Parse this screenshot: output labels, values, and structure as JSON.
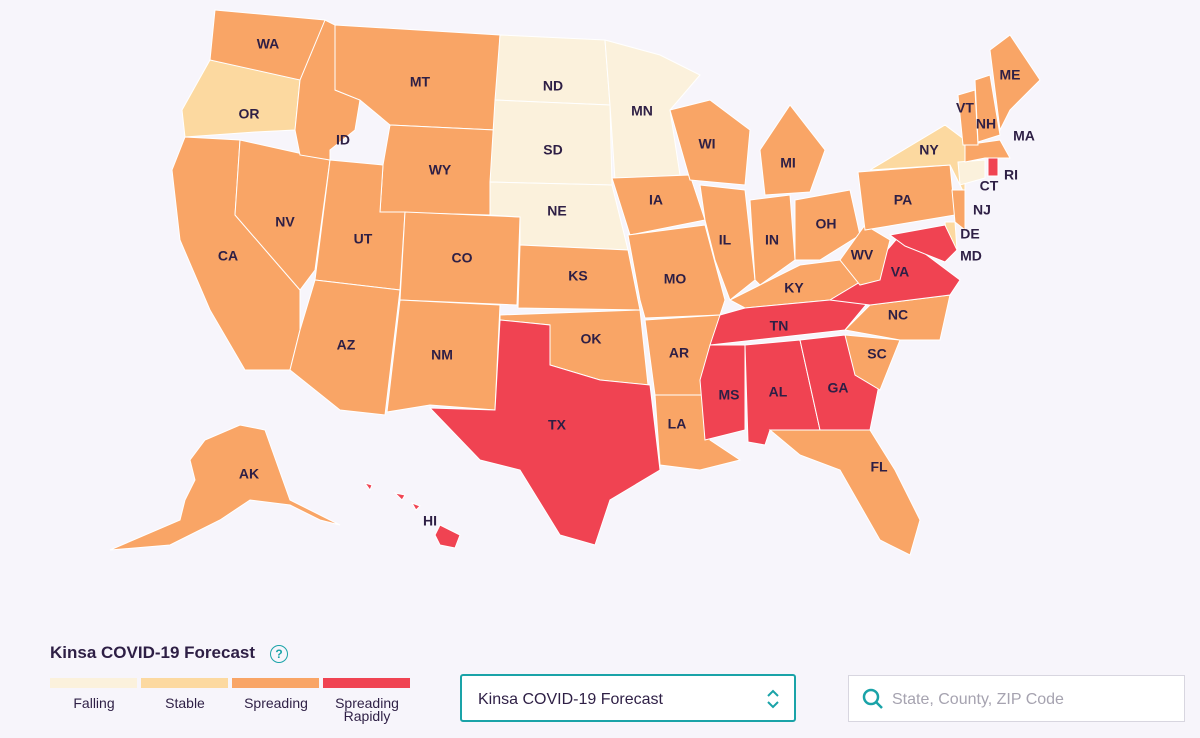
{
  "map": {
    "levels": [
      {
        "label": "Falling",
        "color": "#fbf1dc"
      },
      {
        "label": "Stable",
        "color": "#fcd9a0"
      },
      {
        "label": "Spreading",
        "color": "#f9a566"
      },
      {
        "label": "Spreading Rapidly",
        "color": "#f04352"
      }
    ],
    "states": [
      {
        "abbr": "WA",
        "level": 2
      },
      {
        "abbr": "OR",
        "level": 1
      },
      {
        "abbr": "CA",
        "level": 2
      },
      {
        "abbr": "NV",
        "level": 2
      },
      {
        "abbr": "ID",
        "level": 2
      },
      {
        "abbr": "MT",
        "level": 2
      },
      {
        "abbr": "WY",
        "level": 2
      },
      {
        "abbr": "UT",
        "level": 2
      },
      {
        "abbr": "AZ",
        "level": 2
      },
      {
        "abbr": "CO",
        "level": 2
      },
      {
        "abbr": "NM",
        "level": 2
      },
      {
        "abbr": "ND",
        "level": 0
      },
      {
        "abbr": "SD",
        "level": 0
      },
      {
        "abbr": "NE",
        "level": 0
      },
      {
        "abbr": "KS",
        "level": 2
      },
      {
        "abbr": "OK",
        "level": 2
      },
      {
        "abbr": "TX",
        "level": 3
      },
      {
        "abbr": "MN",
        "level": 0
      },
      {
        "abbr": "IA",
        "level": 2
      },
      {
        "abbr": "MO",
        "level": 2
      },
      {
        "abbr": "AR",
        "level": 2
      },
      {
        "abbr": "LA",
        "level": 2
      },
      {
        "abbr": "WI",
        "level": 2
      },
      {
        "abbr": "IL",
        "level": 2
      },
      {
        "abbr": "IN",
        "level": 2
      },
      {
        "abbr": "MI",
        "level": 2
      },
      {
        "abbr": "OH",
        "level": 2
      },
      {
        "abbr": "KY",
        "level": 2
      },
      {
        "abbr": "TN",
        "level": 3
      },
      {
        "abbr": "MS",
        "level": 3
      },
      {
        "abbr": "AL",
        "level": 3
      },
      {
        "abbr": "GA",
        "level": 3
      },
      {
        "abbr": "FL",
        "level": 2
      },
      {
        "abbr": "SC",
        "level": 2
      },
      {
        "abbr": "NC",
        "level": 2
      },
      {
        "abbr": "VA",
        "level": 3
      },
      {
        "abbr": "WV",
        "level": 2
      },
      {
        "abbr": "PA",
        "level": 2
      },
      {
        "abbr": "NY",
        "level": 1
      },
      {
        "abbr": "NJ",
        "level": 2
      },
      {
        "abbr": "DE",
        "level": 1
      },
      {
        "abbr": "MD",
        "level": 3
      },
      {
        "abbr": "CT",
        "level": 0
      },
      {
        "abbr": "RI",
        "level": 3
      },
      {
        "abbr": "MA",
        "level": 2
      },
      {
        "abbr": "VT",
        "level": 2
      },
      {
        "abbr": "NH",
        "level": 2
      },
      {
        "abbr": "ME",
        "level": 2
      },
      {
        "abbr": "AK",
        "level": 2
      },
      {
        "abbr": "HI",
        "level": 3
      }
    ]
  },
  "legend": {
    "title": "Kinsa COVID-19 Forecast",
    "help": "?"
  },
  "controls": {
    "dropdown": "Kinsa COVID-19 Forecast",
    "search_placeholder": "State, County, ZIP Code"
  }
}
